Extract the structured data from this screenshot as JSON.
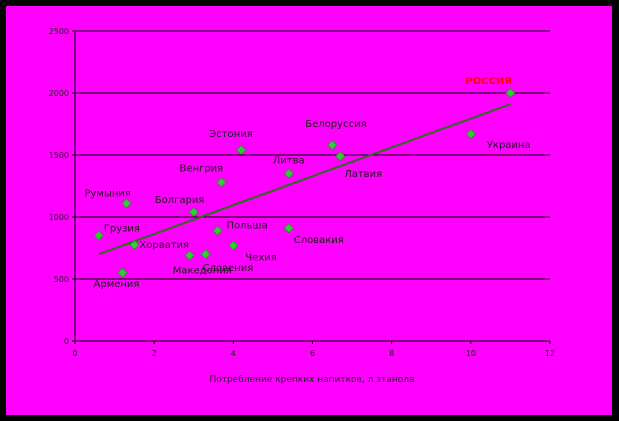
{
  "chart_data": {
    "type": "scatter",
    "title": "",
    "xlabel": "Потребление крепких напитков, л этанола",
    "ylabel": "",
    "xlim": [
      0,
      12
    ],
    "ylim": [
      0,
      2500
    ],
    "x_ticks": [
      0,
      2,
      4,
      6,
      8,
      10,
      12
    ],
    "y_ticks": [
      0,
      500,
      1000,
      1500,
      2000,
      2500
    ],
    "grid": "horizontal",
    "legend": "none",
    "colors": {
      "background": "#ff00ff",
      "frame": "#000000",
      "marker": "#33cc33",
      "trendline": "#2e6b1f",
      "highlight_label": "#ff0000"
    },
    "points": [
      {
        "label": "Армения",
        "x": 1.2,
        "y": 550
      },
      {
        "label": "Грузия",
        "x": 0.6,
        "y": 850
      },
      {
        "label": "Хорватия",
        "x": 1.5,
        "y": 775
      },
      {
        "label": "Румыния",
        "x": 1.3,
        "y": 1110
      },
      {
        "label": "Македония",
        "x": 2.9,
        "y": 690
      },
      {
        "label": "Болгария",
        "x": 3.0,
        "y": 1040
      },
      {
        "label": "Словения",
        "x": 3.3,
        "y": 700
      },
      {
        "label": "Польша",
        "x": 3.6,
        "y": 890
      },
      {
        "label": "Венгрия",
        "x": 3.7,
        "y": 1280
      },
      {
        "label": "Чехия",
        "x": 4.0,
        "y": 770
      },
      {
        "label": "Эстония",
        "x": 4.2,
        "y": 1540
      },
      {
        "label": "Литва",
        "x": 5.4,
        "y": 1350
      },
      {
        "label": "Словакия",
        "x": 5.4,
        "y": 910
      },
      {
        "label": "Белоруссия",
        "x": 6.5,
        "y": 1580
      },
      {
        "label": "Латвия",
        "x": 6.7,
        "y": 1490
      },
      {
        "label": "Украина",
        "x": 10.0,
        "y": 1670
      },
      {
        "label": "РОССИЯ",
        "x": 11.0,
        "y": 2000,
        "highlight": true
      }
    ],
    "trendline": {
      "x1": 0.6,
      "y1": 700,
      "x2": 11.0,
      "y2": 1910
    }
  }
}
